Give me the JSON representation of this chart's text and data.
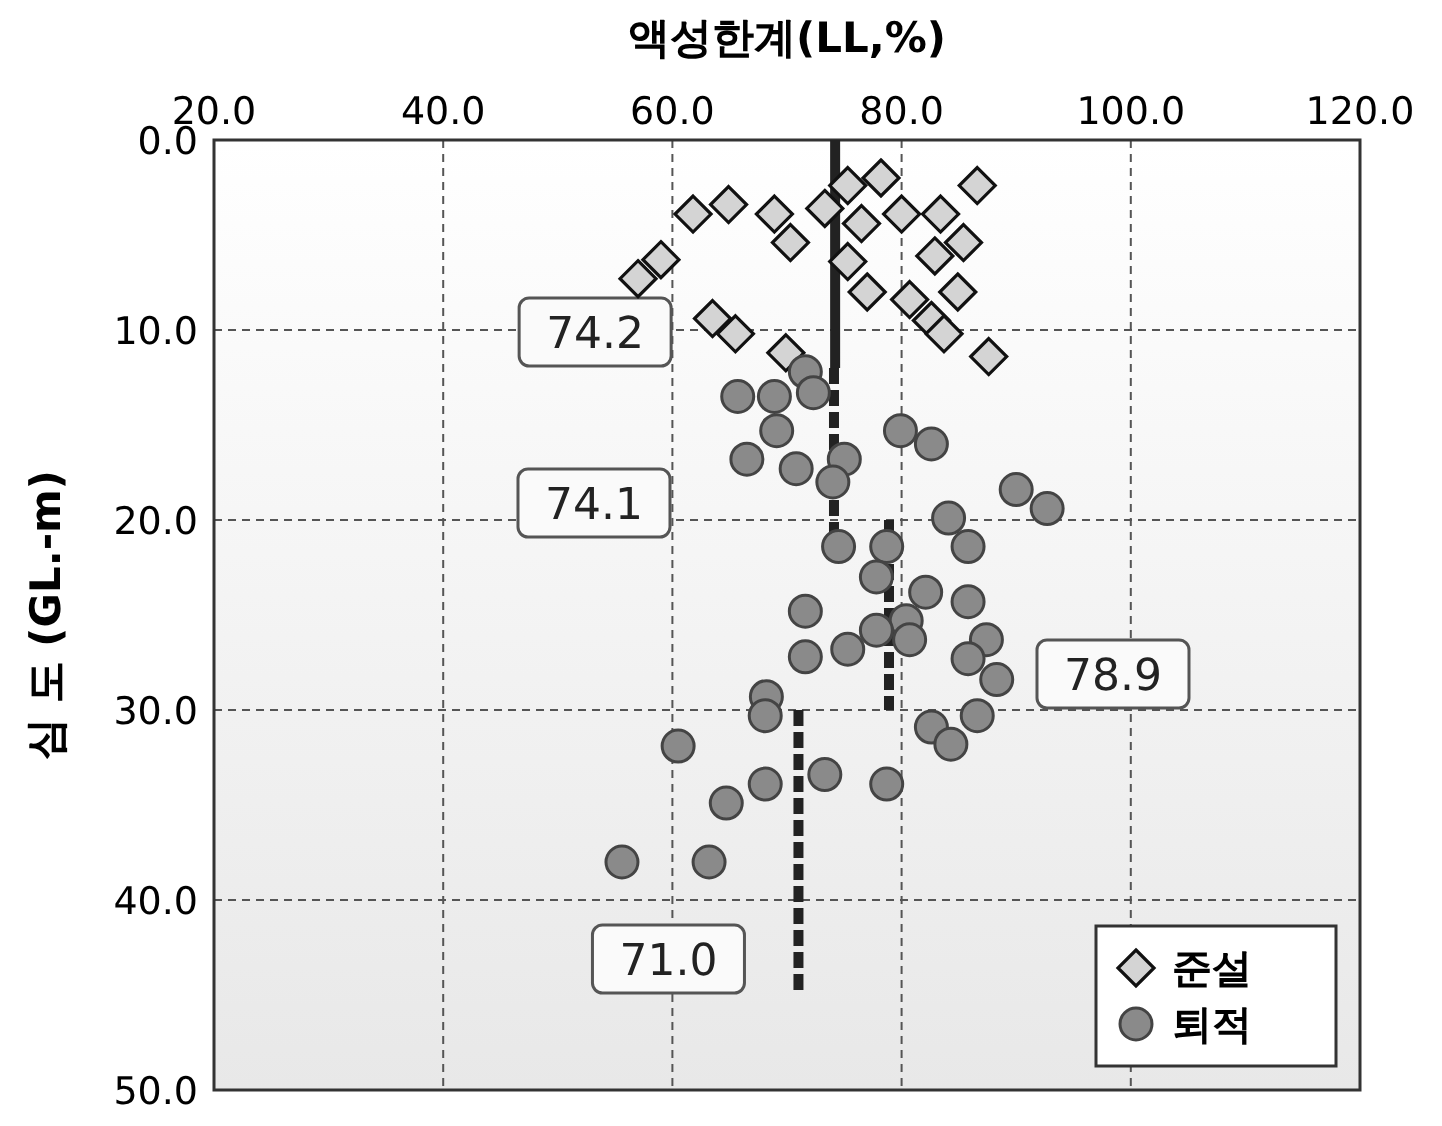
{
  "chart_data": {
    "type": "scatter",
    "xlabel": "액성한계(LL,%)",
    "ylabel": "심 도 (GL.-m)",
    "xlim": [
      20,
      120
    ],
    "xticks": [
      {
        "value": 20,
        "label": "20.0"
      },
      {
        "value": 40,
        "label": "40.0"
      },
      {
        "value": 60,
        "label": "60.0"
      },
      {
        "value": 80,
        "label": "80.0"
      },
      {
        "value": 100,
        "label": "100.0"
      },
      {
        "value": 120,
        "label": "120.0"
      }
    ],
    "ylim": [
      50,
      0
    ],
    "yticks": [
      {
        "value": 0,
        "label": "0.0"
      },
      {
        "value": 10,
        "label": "10.0"
      },
      {
        "value": 20,
        "label": "20.0"
      },
      {
        "value": 30,
        "label": "30.0"
      },
      {
        "value": 40,
        "label": "40.0"
      },
      {
        "value": 50,
        "label": "50.0"
      }
    ],
    "grid": true,
    "legend": "bottom right",
    "series": [
      {
        "name": "준설",
        "marker": "diamond",
        "color": "#d4d4d4",
        "x": [
          57.0,
          59.0,
          61.8,
          64.9,
          68.9,
          70.3,
          63.5,
          65.5,
          69.9,
          73.3,
          75.3,
          78.2,
          76.5,
          75.3,
          77.0,
          80.0,
          83.4,
          86.6,
          85.4,
          82.9,
          84.9,
          80.7,
          82.6,
          83.7,
          87.6
        ],
        "values": [
          7.3,
          6.3,
          3.9,
          3.4,
          3.9,
          5.4,
          9.4,
          10.2,
          11.2,
          3.6,
          2.4,
          2.0,
          4.4,
          6.4,
          8.0,
          3.9,
          3.9,
          2.4,
          5.4,
          6.1,
          8.0,
          8.4,
          9.5,
          10.2,
          11.4
        ]
      },
      {
        "name": "퇴적",
        "marker": "circle",
        "color": "#8a8a8a",
        "x": [
          65.7,
          68.9,
          71.6,
          72.3,
          69.1,
          66.5,
          70.8,
          75.0,
          74.0,
          79.9,
          82.6,
          90.0,
          92.7,
          84.1,
          85.8,
          74.5,
          78.7,
          77.8,
          82.1,
          85.8,
          80.4,
          80.7,
          77.8,
          71.6,
          71.6,
          75.3,
          87.4,
          85.8,
          88.3,
          68.2,
          68.1,
          82.6,
          86.6,
          84.3,
          60.5,
          68.1,
          73.3,
          78.7,
          64.7,
          55.6,
          63.2
        ],
        "values": [
          13.5,
          13.5,
          12.2,
          13.3,
          15.3,
          16.8,
          17.3,
          16.8,
          18.0,
          15.3,
          16.0,
          18.4,
          19.4,
          19.9,
          21.4,
          21.4,
          21.4,
          23.0,
          23.8,
          24.3,
          25.3,
          26.3,
          25.8,
          24.8,
          27.2,
          26.8,
          26.3,
          27.3,
          28.4,
          29.3,
          30.3,
          30.9,
          30.3,
          31.8,
          31.9,
          33.9,
          33.4,
          33.9,
          34.9,
          38.0,
          38.0
        ]
      },
      {
        "name": "74.2",
        "type": "line",
        "line_style": "solid",
        "color": "#222222",
        "x": [
          74.2,
          74.2
        ],
        "values": [
          0,
          12
        ]
      },
      {
        "name": "74.1",
        "type": "line",
        "line_style": "dashed",
        "color": "#222222",
        "x": [
          74.1,
          74.1
        ],
        "values": [
          12,
          21
        ]
      },
      {
        "name": "78.9",
        "type": "line",
        "line_style": "dashed",
        "color": "#222222",
        "x": [
          78.9,
          78.9
        ],
        "values": [
          20,
          30
        ]
      },
      {
        "name": "71.0",
        "type": "line",
        "line_style": "dashed",
        "color": "#222222",
        "x": [
          71.0,
          71.0
        ],
        "values": [
          30,
          45
        ]
      }
    ]
  }
}
